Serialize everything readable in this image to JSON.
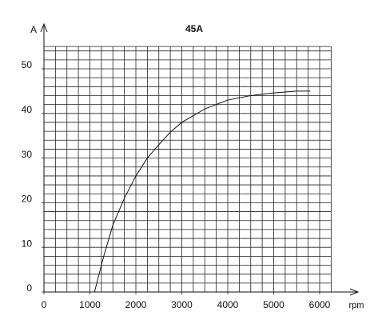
{
  "chart_data": {
    "type": "line",
    "title": "45A",
    "y_label": "A",
    "x_label": "rpm",
    "x": [
      1100,
      1300,
      1500,
      1750,
      2000,
      2250,
      2500,
      2750,
      3000,
      3500,
      4000,
      4500,
      5000,
      5500,
      5800
    ],
    "series": [
      {
        "name": "45A",
        "color": "#111111",
        "values": [
          0,
          8,
          15,
          21,
          26,
          30,
          33,
          35.8,
          38,
          41,
          43,
          44,
          44.6,
          45,
          45
        ]
      }
    ],
    "xlim": [
      0,
      6250
    ],
    "xticks": [
      0,
      1000,
      2000,
      3000,
      4000,
      5000,
      6000
    ],
    "ylim": [
      0,
      55
    ],
    "yticks": [
      0,
      10,
      20,
      30,
      40,
      50
    ],
    "grid": true,
    "xgrid_step": 250,
    "ygrid_step": 2
  }
}
